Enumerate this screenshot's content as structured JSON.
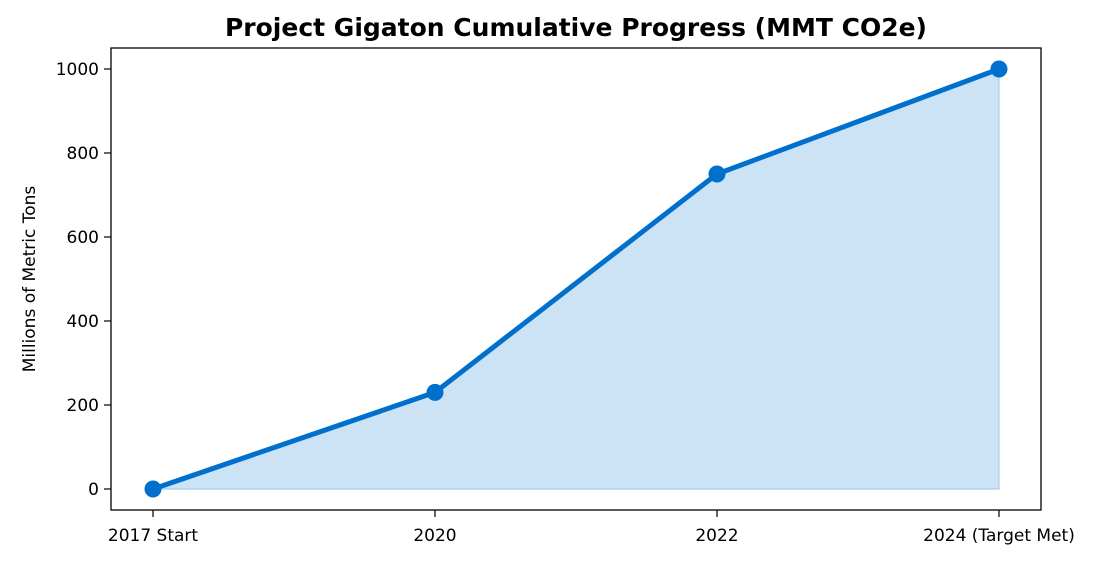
{
  "chart_data": {
    "type": "area",
    "title": "Project Gigaton Cumulative Progress (MMT CO2e)",
    "xlabel": "",
    "ylabel": "Millions of Metric Tons",
    "categories": [
      "2017 Start",
      "2020",
      "2022",
      "2024 (Target Met)"
    ],
    "series": [
      {
        "values": [
          0,
          230,
          750,
          1000
        ]
      }
    ],
    "ylim": [
      -50,
      1050
    ],
    "yticks": [
      0,
      200,
      400,
      600,
      800,
      1000
    ],
    "grid": false,
    "colors": {
      "line": "#0070cc",
      "fill": "#cce2f5",
      "fill_edge": "#a9cdee"
    }
  }
}
